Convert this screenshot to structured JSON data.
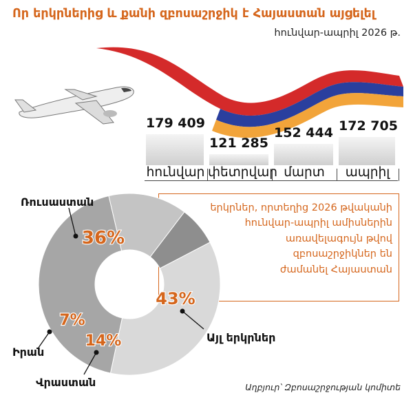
{
  "title": "Որ երկրներից և քանի զբոսաշրջիկ է Հայաստան այցելել",
  "subtitle": "հունվար-ապրիլ 2026 թ.",
  "description": [
    "երկրներ, որտեղից 2026 թվականի",
    "հունվար-ապրիլ ամիսներին",
    "առավելագույն թվով",
    "զբոսաշրջիկներ են",
    "ժամանել Հայաստան"
  ],
  "source": "Աղբյուր՝ Զբոսաշրջության կոմիտե",
  "colors": {
    "accent": "#d5661c",
    "flag_red": "#d42a2a",
    "flag_blue": "#2a3f9e",
    "flag_orange": "#f2a43a"
  },
  "icons": [
    "airplane-icon",
    "armenian-flag-ribbon"
  ],
  "chart_data": [
    {
      "type": "bar",
      "categories": [
        "հունվար",
        "փետրվար",
        "մարտ",
        "ապրիլ"
      ],
      "values": [
        179409,
        121285,
        152444,
        172705
      ],
      "value_labels": [
        "179 409",
        "121 285",
        "152 444",
        "172 705"
      ],
      "title": "",
      "xlabel": "",
      "ylabel": "",
      "ylim": [
        0,
        180000
      ],
      "grid": false
    },
    {
      "type": "pie",
      "donut": true,
      "categories": [
        "Ռուսաստան",
        "Այլ երկրներ",
        "Վրաստան",
        "Իրան"
      ],
      "values": [
        36,
        43,
        14,
        7
      ],
      "value_labels": [
        "36%",
        "43%",
        "14%",
        "7%"
      ],
      "colors": [
        "#d9d9d9",
        "#a6a6a6",
        "#c4c4c4",
        "#8e8e8e"
      ],
      "legend": "none"
    }
  ]
}
